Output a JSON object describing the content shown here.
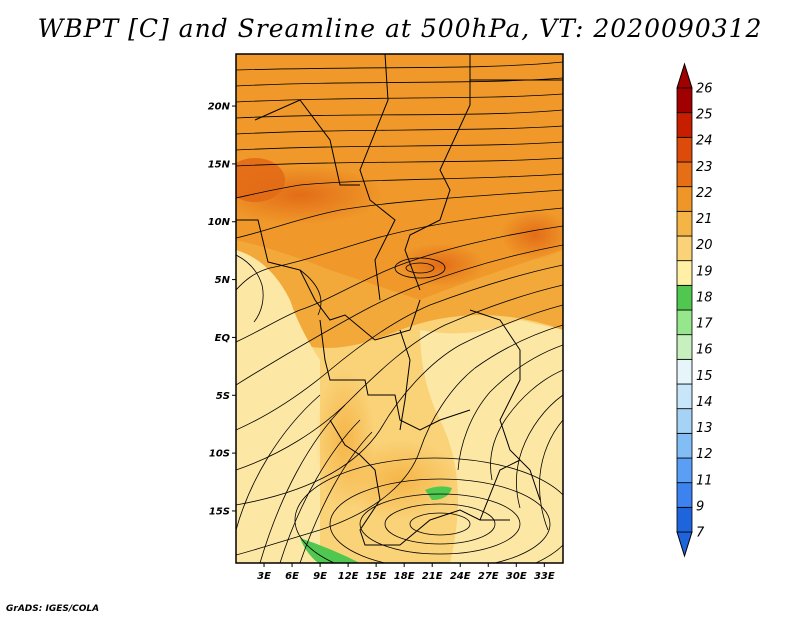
{
  "title": "WBPT [C] and Sreamline at 500hPa, VT: 2020090312",
  "credit": "GrADS: IGES/COLA",
  "map": {
    "lat_labels": [
      "20N",
      "15N",
      "10N",
      "5N",
      "EQ",
      "5S",
      "10S",
      "15S"
    ],
    "lon_labels": [
      "3E",
      "6E",
      "9E",
      "12E",
      "15E",
      "18E",
      "21E",
      "24E",
      "27E",
      "30E",
      "33E"
    ],
    "lat_values": [
      20,
      15,
      10,
      5,
      0,
      -5,
      -10,
      -15
    ],
    "lon_values": [
      3,
      6,
      9,
      12,
      15,
      18,
      21,
      24,
      27,
      30,
      33
    ],
    "lon_range": [
      0,
      35
    ],
    "lat_range": [
      -19.5,
      24.5
    ]
  },
  "colorbar": {
    "labels": [
      "7",
      "9",
      "11",
      "12",
      "13",
      "14",
      "15",
      "16",
      "17",
      "18",
      "19",
      "20",
      "21",
      "22",
      "23",
      "24",
      "25",
      "26"
    ],
    "colors": [
      "#1e64dc",
      "#3c82f0",
      "#5a9ef5",
      "#82bef5",
      "#a5d2f5",
      "#c8e6fa",
      "#e6f5fa",
      "#c8f0be",
      "#96e68c",
      "#50c850",
      "#fff0a5",
      "#fad278",
      "#f5b446",
      "#f09628",
      "#e66e14",
      "#dc4b0a",
      "#c81e00",
      "#a00000"
    ]
  },
  "legend_title": "WBPT [C]"
}
